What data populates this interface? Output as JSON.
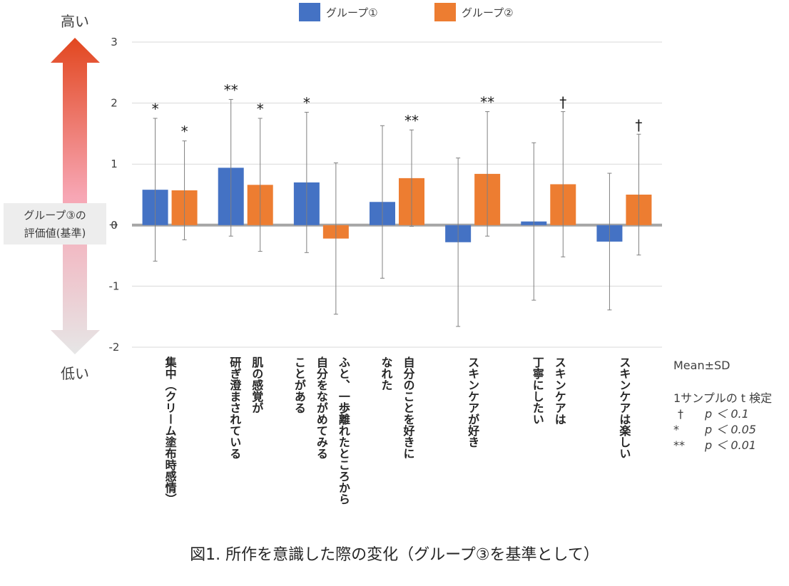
{
  "chart_data": {
    "type": "bar",
    "title": "",
    "xlabel": "",
    "ylabel": "",
    "ylim": [
      -2,
      3
    ],
    "yticks": [
      3,
      2,
      1,
      0,
      -1,
      -2
    ],
    "grid": true,
    "legend_position": "top",
    "categories": [
      {
        "lines": [
          "集中（クリーム塗布時感情）"
        ]
      },
      {
        "lines": [
          "研ぎ澄まされている",
          "肌の感覚が"
        ]
      },
      {
        "lines": [
          "ことがある",
          "自分をながめてみる",
          "ふと、一歩離れたところから"
        ]
      },
      {
        "lines": [
          "なれた",
          "自分のことを好きに"
        ]
      },
      {
        "lines": [
          "スキンケアが好き"
        ]
      },
      {
        "lines": [
          "丁寧にしたい",
          "スキンケアは"
        ]
      },
      {
        "lines": [
          "スキンケアは楽しい"
        ]
      }
    ],
    "series": [
      {
        "name": "グループ①",
        "color": "#4472C4",
        "values": [
          0.58,
          0.94,
          0.7,
          0.38,
          -0.28,
          0.06,
          -0.27
        ],
        "sd": [
          1.17,
          1.12,
          1.15,
          1.25,
          1.38,
          1.29,
          1.12
        ],
        "sig": [
          "*",
          "**",
          "*",
          "",
          "",
          "",
          ""
        ]
      },
      {
        "name": "グループ②",
        "color": "#ED7D31",
        "values": [
          0.57,
          0.66,
          -0.22,
          0.77,
          0.84,
          0.67,
          0.5
        ],
        "sd": [
          0.81,
          1.09,
          1.24,
          0.79,
          1.02,
          1.19,
          0.99
        ],
        "sig": [
          "*",
          "*",
          "",
          "**",
          "**",
          "†",
          "†"
        ]
      }
    ]
  },
  "side": {
    "high": "高い",
    "low": "低い",
    "ref_line1": "グループ③の",
    "ref_line2": "評価値(基準)",
    "ref_arrow": "→"
  },
  "notes": {
    "mean_sd": "Mean±SD",
    "test_title": "1サンプルの t 検定",
    "rows": [
      {
        "mark": "†",
        "text": "p ＜ 0.1"
      },
      {
        "mark": "*",
        "text": "p ＜ 0.05"
      },
      {
        "mark": "**",
        "text": "p ＜ 0.01"
      }
    ]
  },
  "caption": "図1.  所作を意識した際の変化（グループ③を基準として）",
  "colors": {
    "arrow_top": "#E2471F",
    "arrow_mid": "#F7A6B4",
    "arrow_bottom": "#E0E0E0",
    "zero_line": "#A6A6A6",
    "grid": "#D9D9D9"
  }
}
